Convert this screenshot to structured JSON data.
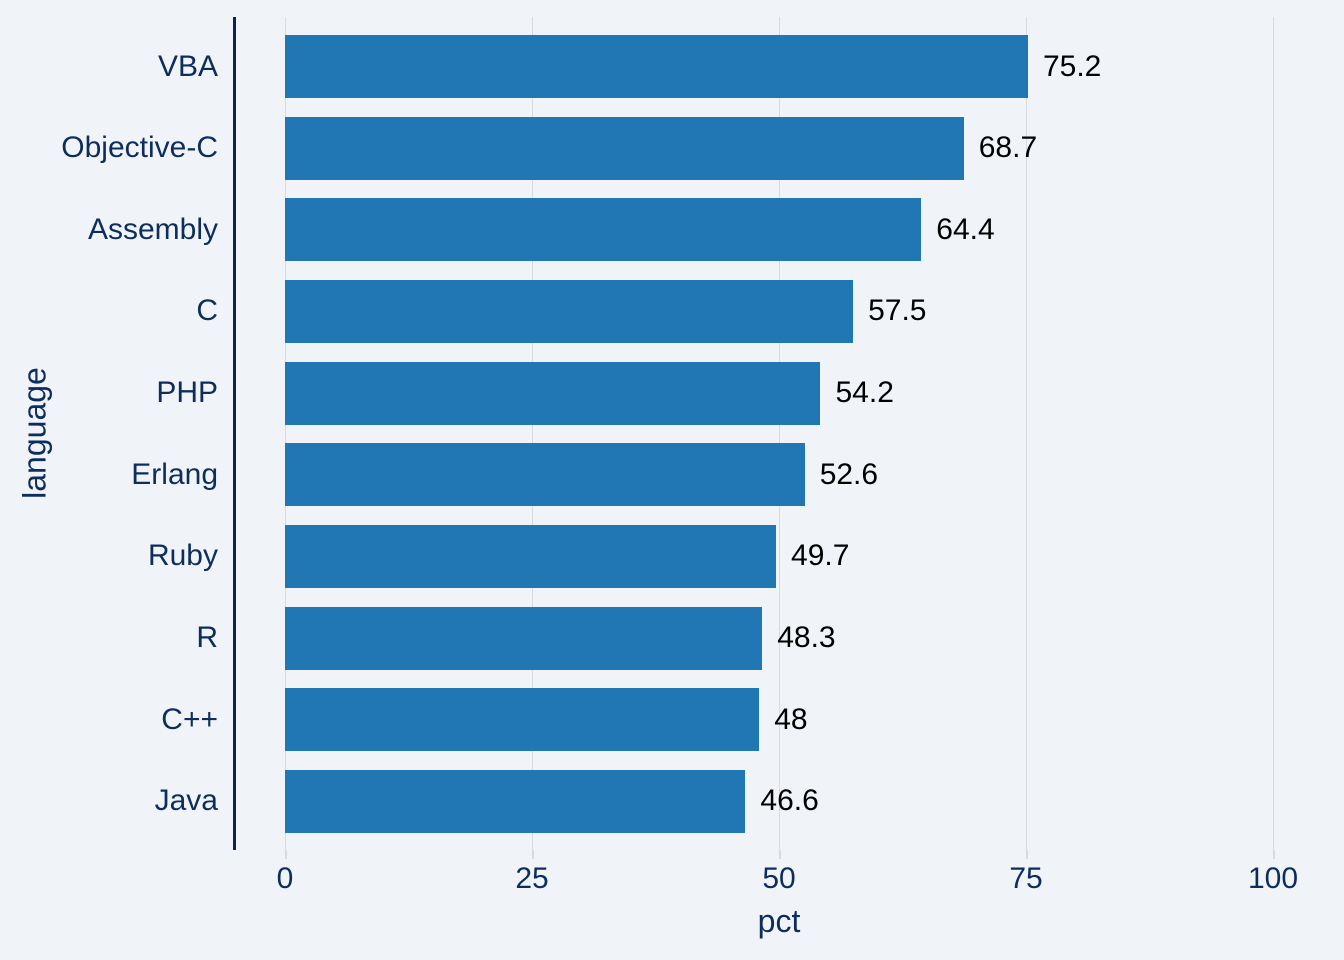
{
  "chart_data": {
    "type": "bar",
    "orientation": "horizontal",
    "title": "",
    "xlabel": "pct",
    "ylabel": "language",
    "categories": [
      "VBA",
      "Objective-C",
      "Assembly",
      "C",
      "PHP",
      "Erlang",
      "Ruby",
      "R",
      "C++",
      "Java"
    ],
    "values": [
      75.2,
      68.7,
      64.4,
      57.5,
      54.2,
      52.6,
      49.7,
      48.3,
      48,
      46.6
    ],
    "value_labels": [
      "75.2",
      "68.7",
      "64.4",
      "57.5",
      "54.2",
      "52.6",
      "49.7",
      "48.3",
      "48",
      "46.6"
    ],
    "x_ticks": [
      0,
      25,
      50,
      75,
      100
    ],
    "x_tick_labels": [
      "0",
      "25",
      "50",
      "75",
      "100"
    ],
    "xlim": [
      0,
      100
    ],
    "grid": true,
    "legend": false,
    "colors": {
      "background": "#f0f4f9",
      "bar": "#2077b4",
      "axis_text": "#0d2d5c",
      "value_label": "#000000",
      "gridline": "#d7dade",
      "axis_line": "#0a2550"
    }
  }
}
